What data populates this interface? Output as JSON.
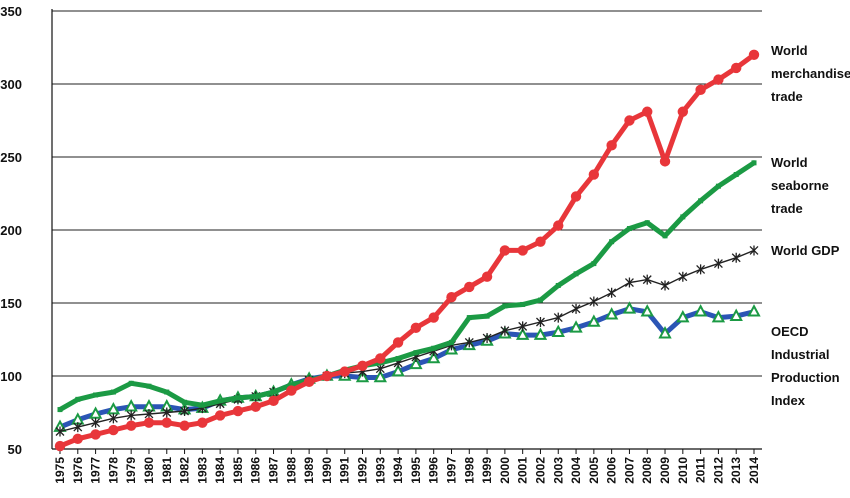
{
  "chart_data": {
    "type": "line",
    "title": "",
    "xlabel": "",
    "ylabel": "",
    "ylim": [
      50,
      350
    ],
    "yticks": [
      50,
      100,
      150,
      200,
      250,
      300,
      350
    ],
    "grid": "horizontal",
    "legend": "right (labels placed at line ends)",
    "categories": [
      "1975",
      "1976",
      "1977",
      "1978",
      "1979",
      "1980",
      "1981",
      "1982",
      "1983",
      "1984",
      "1985",
      "1986",
      "1987",
      "1988",
      "1989",
      "1990",
      "1991",
      "1992",
      "1993",
      "1994",
      "1995",
      "1996",
      "1997",
      "1998",
      "1999",
      "2000",
      "2001",
      "2002",
      "2003",
      "2004",
      "2005",
      "2006",
      "2007",
      "2008",
      "2009",
      "2010",
      "2011",
      "2012",
      "2013",
      "2014"
    ],
    "series": [
      {
        "key": "merch",
        "name": "World merchandise trade",
        "label_lines": [
          "World",
          "merchandise",
          "trade"
        ],
        "color": "#e8363a",
        "marker": "circle",
        "values": [
          52,
          57,
          60,
          63,
          66,
          68,
          68,
          66,
          68,
          73,
          76,
          79,
          83,
          90,
          96,
          100,
          103,
          107,
          112,
          123,
          133,
          140,
          154,
          161,
          168,
          186,
          186,
          192,
          203,
          223,
          238,
          258,
          275,
          281,
          247,
          281,
          296,
          303,
          311,
          320
        ]
      },
      {
        "key": "seaborne",
        "name": "World seaborne trade",
        "label_lines": [
          "World",
          "seaborne",
          "trade"
        ],
        "color": "#1b9a44",
        "marker": "tick",
        "values": [
          77,
          84,
          87,
          89,
          95,
          93,
          89,
          82,
          80,
          83,
          85,
          86,
          89,
          94,
          97,
          100,
          104,
          107,
          109,
          112,
          116,
          119,
          123,
          140,
          141,
          148,
          149,
          152,
          162,
          170,
          177,
          192,
          201,
          205,
          196,
          209,
          220,
          230,
          238,
          246
        ]
      },
      {
        "key": "gdp",
        "name": "World GDP",
        "label_lines": [
          "World GDP"
        ],
        "color": "#222222",
        "marker": "star",
        "values": [
          62,
          65,
          68,
          71,
          73,
          74,
          75,
          76,
          78,
          81,
          84,
          86,
          89,
          92,
          97,
          100,
          102,
          103,
          105,
          109,
          113,
          117,
          121,
          123,
          126,
          131,
          134,
          137,
          140,
          146,
          151,
          157,
          164,
          166,
          162,
          168,
          173,
          177,
          181,
          186
        ]
      },
      {
        "key": "oecd",
        "name": "OECD Industrial Production Index",
        "label_lines": [
          "OECD",
          "Industrial",
          "Production",
          "Index"
        ],
        "color": "#2b55b5",
        "marker_color": "#1b9a44",
        "marker": "triangle",
        "values": [
          65,
          70,
          74,
          77,
          79,
          79,
          79,
          77,
          78,
          83,
          85,
          86,
          89,
          94,
          98,
          100,
          100,
          99,
          99,
          103,
          108,
          112,
          118,
          121,
          124,
          129,
          128,
          128,
          130,
          133,
          137,
          142,
          146,
          144,
          129,
          140,
          144,
          140,
          141,
          144
        ]
      }
    ]
  }
}
